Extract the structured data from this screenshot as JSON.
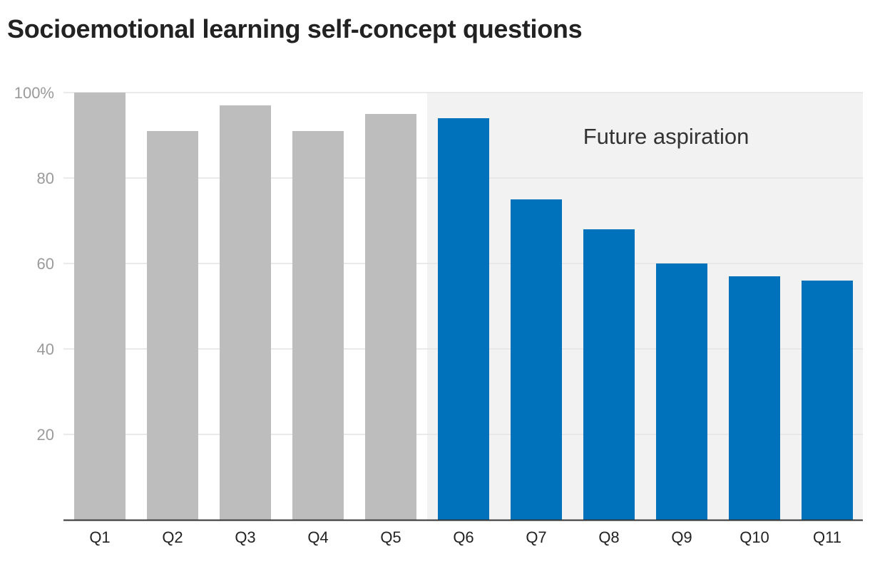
{
  "chart_data": {
    "type": "bar",
    "title": "Socioemotional learning self-concept questions",
    "categories": [
      "Q1",
      "Q2",
      "Q3",
      "Q4",
      "Q5",
      "Q6",
      "Q7",
      "Q8",
      "Q9",
      "Q10",
      "Q11"
    ],
    "values": [
      100,
      91,
      97,
      91,
      95,
      94,
      75,
      68,
      60,
      57,
      56
    ],
    "groups": [
      "self-concept",
      "self-concept",
      "self-concept",
      "self-concept",
      "self-concept",
      "future-aspiration",
      "future-aspiration",
      "future-aspiration",
      "future-aspiration",
      "future-aspiration",
      "future-aspiration"
    ],
    "colors": {
      "self-concept": "#bdbdbd",
      "future-aspiration": "#0072bc",
      "highlight_region": "#f2f2f2"
    },
    "annotation": "Future aspiration",
    "yticks": [
      {
        "value": 20,
        "label": "20"
      },
      {
        "value": 40,
        "label": "40"
      },
      {
        "value": 60,
        "label": "60"
      },
      {
        "value": 80,
        "label": "80"
      },
      {
        "value": 100,
        "label": "100%"
      }
    ],
    "ylim": [
      0,
      100
    ],
    "grid": true,
    "xlabel": "",
    "ylabel": ""
  }
}
